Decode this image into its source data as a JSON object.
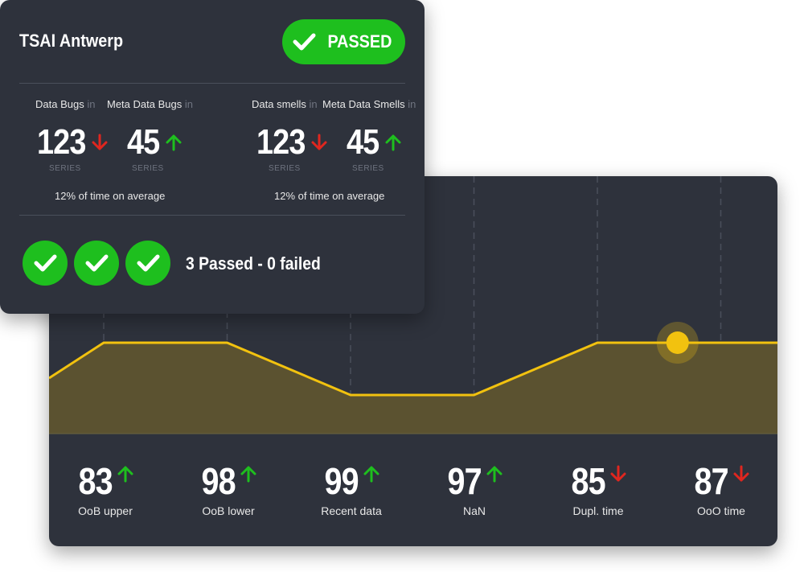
{
  "summary": {
    "title": "TSAI Antwerp",
    "status_label": "PASSED",
    "metrics": [
      {
        "label": "Data Bugs",
        "suffix": "in",
        "value": "123",
        "unit": "SERIES",
        "trend": "down"
      },
      {
        "label": "Meta Data Bugs",
        "suffix": "in",
        "value": "45",
        "unit": "SERIES",
        "trend": "up"
      },
      {
        "label": "Data smells",
        "suffix": "in",
        "value": "123",
        "unit": "SERIES",
        "trend": "down"
      },
      {
        "label": "Meta Data Smells",
        "suffix": "in",
        "value": "45",
        "unit": "SERIES",
        "trend": "up"
      }
    ],
    "avg_left": "12% of time on average",
    "avg_right": "12% of time on average",
    "result_text": "3 Passed - 0 failed",
    "checks_passed": 3
  },
  "stats": [
    {
      "value": "83",
      "label": "OoB upper",
      "trend": "up"
    },
    {
      "value": "98",
      "label": "OoB lower",
      "trend": "up"
    },
    {
      "value": "99",
      "label": "Recent data",
      "trend": "up"
    },
    {
      "value": "97",
      "label": "NaN",
      "trend": "up"
    },
    {
      "value": "85",
      "label": "Dupl. time",
      "trend": "down"
    },
    {
      "value": "87",
      "label": "OoO time",
      "trend": "down"
    }
  ],
  "chart_data": {
    "type": "area",
    "x": [
      0,
      1,
      2,
      3,
      4,
      5,
      6
    ],
    "values": [
      2,
      3,
      3,
      1,
      1,
      3,
      3
    ],
    "highlight_index": 5.65,
    "ylim": [
      0,
      4
    ]
  },
  "colors": {
    "card_bg": "#2e323c",
    "green": "#1ebf1e",
    "red": "#e0261f",
    "line": "#f2c20f",
    "area": "#5b5230",
    "marker": "#f2c20f"
  },
  "icons": {
    "check": "check-icon",
    "up": "arrow-up-icon",
    "down": "arrow-down-icon"
  }
}
